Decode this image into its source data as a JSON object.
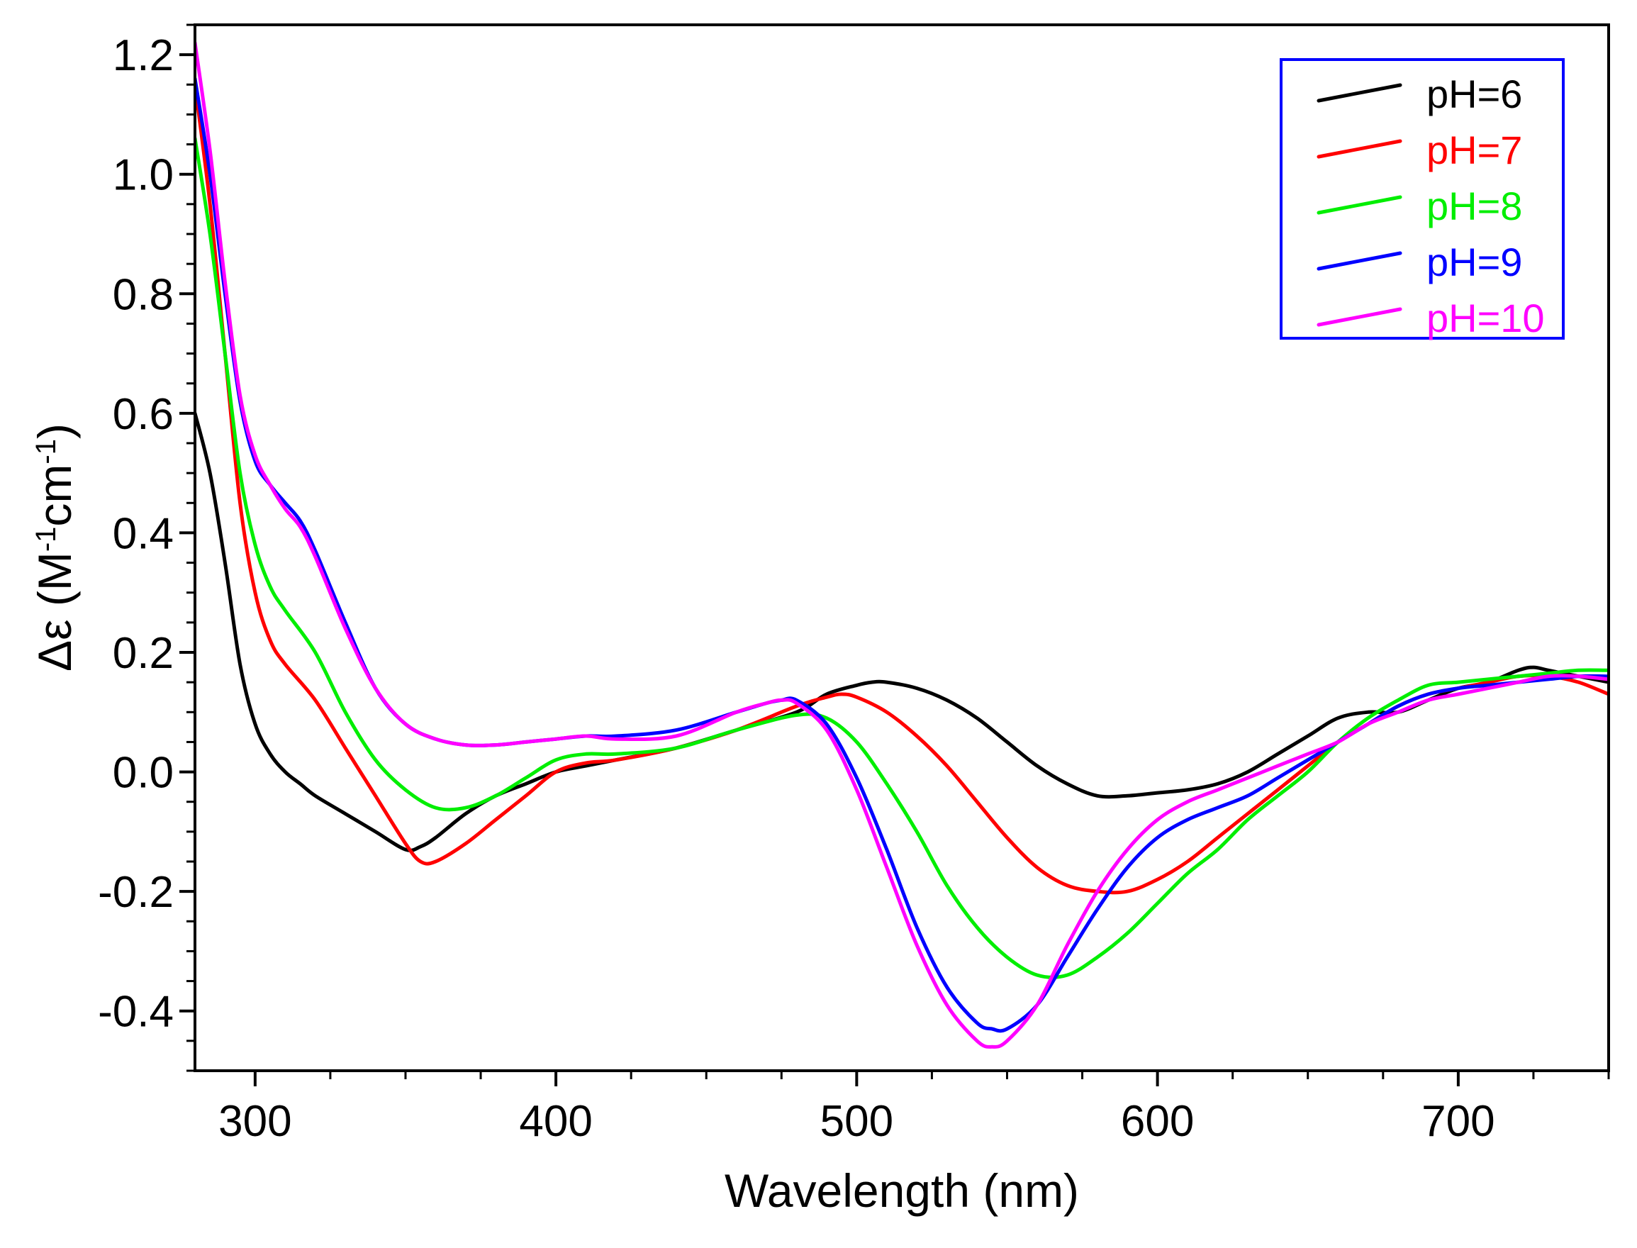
{
  "chart_data": {
    "type": "line",
    "title": "",
    "xlabel": "Wavelength (nm)",
    "ylabel": {
      "base": "Δε (M",
      "sup1": "-1",
      "mid": "cm",
      "sup2": "-1",
      "end": ")"
    },
    "xlim": [
      280,
      750
    ],
    "ylim": [
      -0.5,
      1.25
    ],
    "xticks": [
      300,
      400,
      500,
      600,
      700
    ],
    "xtick_labels": [
      "300",
      "400",
      "500",
      "600",
      "700"
    ],
    "yticks": [
      -0.4,
      -0.2,
      0.0,
      0.2,
      0.4,
      0.6,
      0.8,
      1.0,
      1.2
    ],
    "ytick_labels": [
      "-0.4",
      "-0.2",
      "0.0",
      "0.2",
      "0.4",
      "0.6",
      "0.8",
      "1.0",
      "1.2"
    ],
    "grid": false,
    "legend_position": "top-right",
    "series": [
      {
        "name": "pH=6",
        "color": "#000000",
        "x": [
          280,
          285,
          290,
          295,
          300,
          305,
          310,
          315,
          320,
          330,
          340,
          350,
          355,
          360,
          370,
          380,
          390,
          400,
          410,
          420,
          440,
          460,
          480,
          490,
          500,
          505,
          510,
          520,
          530,
          540,
          550,
          560,
          570,
          580,
          590,
          600,
          610,
          620,
          630,
          640,
          650,
          660,
          670,
          680,
          690,
          700,
          710,
          720,
          725,
          730,
          740,
          750
        ],
        "y": [
          0.6,
          0.5,
          0.35,
          0.18,
          0.08,
          0.03,
          0.0,
          -0.02,
          -0.04,
          -0.07,
          -0.1,
          -0.13,
          -0.125,
          -0.11,
          -0.07,
          -0.04,
          -0.02,
          0.0,
          0.01,
          0.02,
          0.04,
          0.07,
          0.1,
          0.13,
          0.145,
          0.15,
          0.15,
          0.14,
          0.12,
          0.09,
          0.05,
          0.01,
          -0.02,
          -0.04,
          -0.04,
          -0.035,
          -0.03,
          -0.02,
          0.0,
          0.03,
          0.06,
          0.09,
          0.1,
          0.1,
          0.12,
          0.14,
          0.15,
          0.17,
          0.175,
          0.17,
          0.16,
          0.15
        ]
      },
      {
        "name": "pH=7",
        "color": "#ff0000",
        "x": [
          280,
          285,
          290,
          295,
          300,
          305,
          310,
          320,
          330,
          340,
          350,
          355,
          360,
          370,
          380,
          390,
          400,
          410,
          420,
          440,
          460,
          480,
          490,
          495,
          500,
          510,
          520,
          530,
          540,
          550,
          560,
          570,
          580,
          590,
          600,
          610,
          620,
          630,
          640,
          650,
          660,
          670,
          680,
          690,
          700,
          710,
          720,
          730,
          740,
          750
        ],
        "y": [
          1.15,
          0.95,
          0.7,
          0.45,
          0.3,
          0.22,
          0.18,
          0.12,
          0.04,
          -0.04,
          -0.12,
          -0.15,
          -0.15,
          -0.12,
          -0.08,
          -0.04,
          0.0,
          0.015,
          0.02,
          0.04,
          0.07,
          0.11,
          0.125,
          0.13,
          0.125,
          0.1,
          0.06,
          0.01,
          -0.05,
          -0.11,
          -0.16,
          -0.19,
          -0.2,
          -0.2,
          -0.18,
          -0.15,
          -0.11,
          -0.07,
          -0.03,
          0.01,
          0.05,
          0.08,
          0.11,
          0.13,
          0.14,
          0.15,
          0.16,
          0.16,
          0.15,
          0.13
        ]
      },
      {
        "name": "pH=8",
        "color": "#00ee00",
        "x": [
          280,
          285,
          290,
          295,
          300,
          305,
          310,
          320,
          330,
          340,
          350,
          360,
          370,
          380,
          390,
          400,
          410,
          420,
          440,
          460,
          480,
          490,
          500,
          510,
          520,
          530,
          540,
          550,
          560,
          570,
          580,
          590,
          600,
          610,
          620,
          630,
          640,
          650,
          660,
          670,
          680,
          690,
          700,
          710,
          720,
          730,
          740,
          750
        ],
        "y": [
          1.06,
          0.9,
          0.7,
          0.5,
          0.38,
          0.31,
          0.27,
          0.2,
          0.1,
          0.02,
          -0.03,
          -0.06,
          -0.06,
          -0.04,
          -0.01,
          0.02,
          0.03,
          0.03,
          0.04,
          0.07,
          0.095,
          0.09,
          0.05,
          -0.02,
          -0.1,
          -0.19,
          -0.26,
          -0.31,
          -0.34,
          -0.34,
          -0.31,
          -0.27,
          -0.22,
          -0.17,
          -0.13,
          -0.08,
          -0.04,
          0.0,
          0.05,
          0.09,
          0.12,
          0.145,
          0.15,
          0.155,
          0.16,
          0.165,
          0.17,
          0.17
        ]
      },
      {
        "name": "pH=9",
        "color": "#0000ff",
        "x": [
          280,
          285,
          290,
          295,
          300,
          305,
          310,
          315,
          320,
          330,
          340,
          350,
          360,
          370,
          380,
          390,
          400,
          410,
          420,
          440,
          460,
          470,
          475,
          480,
          490,
          500,
          510,
          520,
          530,
          540,
          545,
          550,
          560,
          570,
          580,
          590,
          600,
          610,
          620,
          630,
          640,
          650,
          660,
          670,
          680,
          690,
          700,
          710,
          720,
          730,
          740,
          750
        ],
        "y": [
          1.16,
          1.0,
          0.8,
          0.62,
          0.52,
          0.48,
          0.45,
          0.42,
          0.37,
          0.25,
          0.14,
          0.08,
          0.055,
          0.045,
          0.045,
          0.05,
          0.055,
          0.06,
          0.06,
          0.07,
          0.1,
          0.115,
          0.12,
          0.12,
          0.08,
          -0.01,
          -0.13,
          -0.26,
          -0.36,
          -0.42,
          -0.43,
          -0.43,
          -0.39,
          -0.31,
          -0.23,
          -0.16,
          -0.11,
          -0.08,
          -0.06,
          -0.04,
          -0.01,
          0.02,
          0.05,
          0.08,
          0.11,
          0.13,
          0.14,
          0.145,
          0.15,
          0.155,
          0.16,
          0.16
        ]
      },
      {
        "name": "pH=10",
        "color": "#ff00ff",
        "x": [
          280,
          285,
          290,
          295,
          300,
          305,
          310,
          315,
          320,
          330,
          340,
          350,
          360,
          370,
          380,
          390,
          400,
          410,
          420,
          440,
          460,
          470,
          475,
          480,
          490,
          500,
          510,
          520,
          530,
          540,
          545,
          550,
          560,
          570,
          580,
          590,
          600,
          610,
          620,
          630,
          640,
          650,
          660,
          670,
          680,
          690,
          700,
          710,
          720,
          730,
          740,
          750
        ],
        "y": [
          1.22,
          1.04,
          0.82,
          0.63,
          0.53,
          0.48,
          0.44,
          0.41,
          0.36,
          0.24,
          0.14,
          0.08,
          0.055,
          0.045,
          0.045,
          0.05,
          0.055,
          0.06,
          0.055,
          0.06,
          0.1,
          0.115,
          0.12,
          0.115,
          0.07,
          -0.03,
          -0.16,
          -0.29,
          -0.39,
          -0.45,
          -0.46,
          -0.45,
          -0.39,
          -0.29,
          -0.2,
          -0.13,
          -0.08,
          -0.05,
          -0.03,
          -0.01,
          0.01,
          0.03,
          0.05,
          0.08,
          0.1,
          0.12,
          0.13,
          0.14,
          0.15,
          0.16,
          0.16,
          0.155
        ]
      }
    ]
  }
}
